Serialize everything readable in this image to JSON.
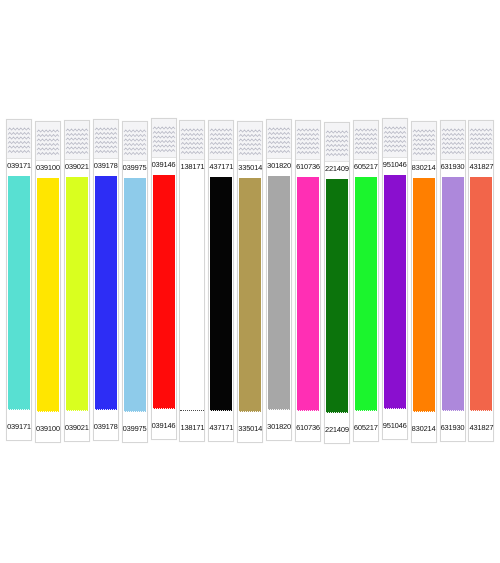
{
  "wristbands": [
    {
      "top_number": "039171",
      "bottom_number": "039171",
      "color": "#58e0d2"
    },
    {
      "top_number": "039100",
      "bottom_number": "039100",
      "color": "#ffe600"
    },
    {
      "top_number": "039021",
      "bottom_number": "039021",
      "color": "#d9ff1f"
    },
    {
      "top_number": "039178",
      "bottom_number": "039178",
      "color": "#2d2df5"
    },
    {
      "top_number": "039975",
      "bottom_number": "039975",
      "color": "#8ecbea"
    },
    {
      "top_number": "039146",
      "bottom_number": "039146",
      "color": "#ff0a0a"
    },
    {
      "top_number": "138171",
      "bottom_number": "138171",
      "color": "#ffffff"
    },
    {
      "top_number": "437171",
      "bottom_number": "437171",
      "color": "#050505"
    },
    {
      "top_number": "335014",
      "bottom_number": "335014",
      "color": "#b19a52"
    },
    {
      "top_number": "301820",
      "bottom_number": "301820",
      "color": "#a7a7a7"
    },
    {
      "top_number": "610736",
      "bottom_number": "610736",
      "color": "#ff2fb4"
    },
    {
      "top_number": "221409",
      "bottom_number": "221409",
      "color": "#0c740c"
    },
    {
      "top_number": "605217",
      "bottom_number": "605217",
      "color": "#1bf52d"
    },
    {
      "top_number": "951046",
      "bottom_number": "951046",
      "color": "#8a0fcf"
    },
    {
      "top_number": "830214",
      "bottom_number": "830214",
      "color": "#ff7f00"
    },
    {
      "top_number": "631930",
      "bottom_number": "631930",
      "color": "#ad88db"
    },
    {
      "top_number": "431827",
      "bottom_number": "431827",
      "color": "#f2654a"
    }
  ]
}
